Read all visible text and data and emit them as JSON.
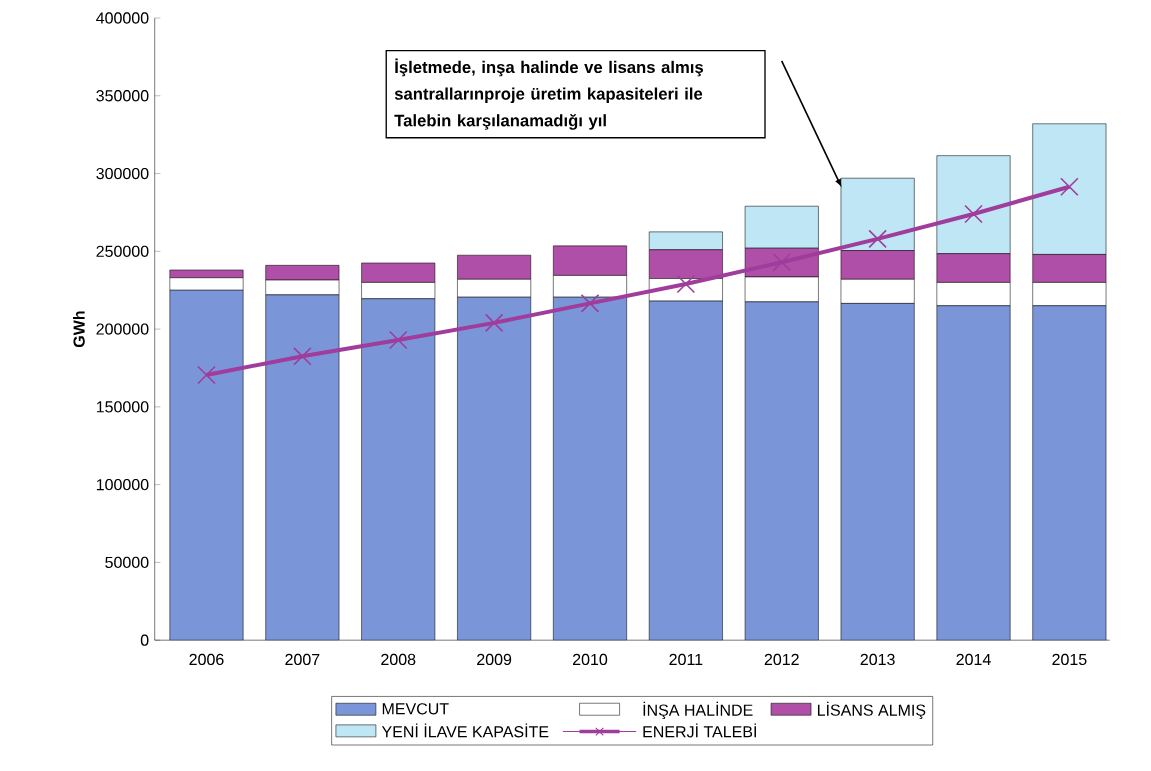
{
  "chart_data": {
    "type": "bar",
    "stacked": true,
    "ylabel": "GWh",
    "categories": [
      "2006",
      "2007",
      "2008",
      "2009",
      "2010",
      "2011",
      "2012",
      "2013",
      "2014",
      "2015"
    ],
    "ylim": [
      0,
      400000
    ],
    "yticks": [
      0,
      50000,
      100000,
      150000,
      200000,
      250000,
      300000,
      350000,
      400000
    ],
    "legend": "bottom",
    "marker": "cross",
    "line_style": "solid",
    "series": [
      {
        "name": "MEVCUT",
        "color": "#7b96d8",
        "values": [
          225000,
          222000,
          219500,
          220500,
          220500,
          218000,
          217500,
          216500,
          215000,
          215000
        ]
      },
      {
        "name": "İNŞA HALİNDE",
        "color": "#ffffff",
        "values": [
          8000,
          9500,
          10500,
          11500,
          14000,
          14500,
          16000,
          15500,
          15000,
          15000
        ]
      },
      {
        "name": "LİSANS ALMIŞ",
        "color": "#b04fa8",
        "values": [
          5000,
          9500,
          12500,
          15500,
          19000,
          18500,
          18500,
          18500,
          18500,
          18000
        ]
      },
      {
        "name": "YENİ İLAVE KAPASİTE",
        "color": "#bfe6f5",
        "values": [
          0,
          0,
          0,
          0,
          0,
          11500,
          27000,
          46500,
          63000,
          84000
        ]
      },
      {
        "name": "ENERJİ TALEBİ",
        "type": "line",
        "color": "#a03c9c",
        "values": [
          170500,
          182500,
          193000,
          204000,
          216500,
          229000,
          243000,
          258000,
          274000,
          291500
        ]
      }
    ],
    "annotations": [
      "İşletmede, inşa halinde ve lisans almış santrallarınproje üretim kapasiteleri ile Talebin karşılanamadığı yıl"
    ]
  }
}
